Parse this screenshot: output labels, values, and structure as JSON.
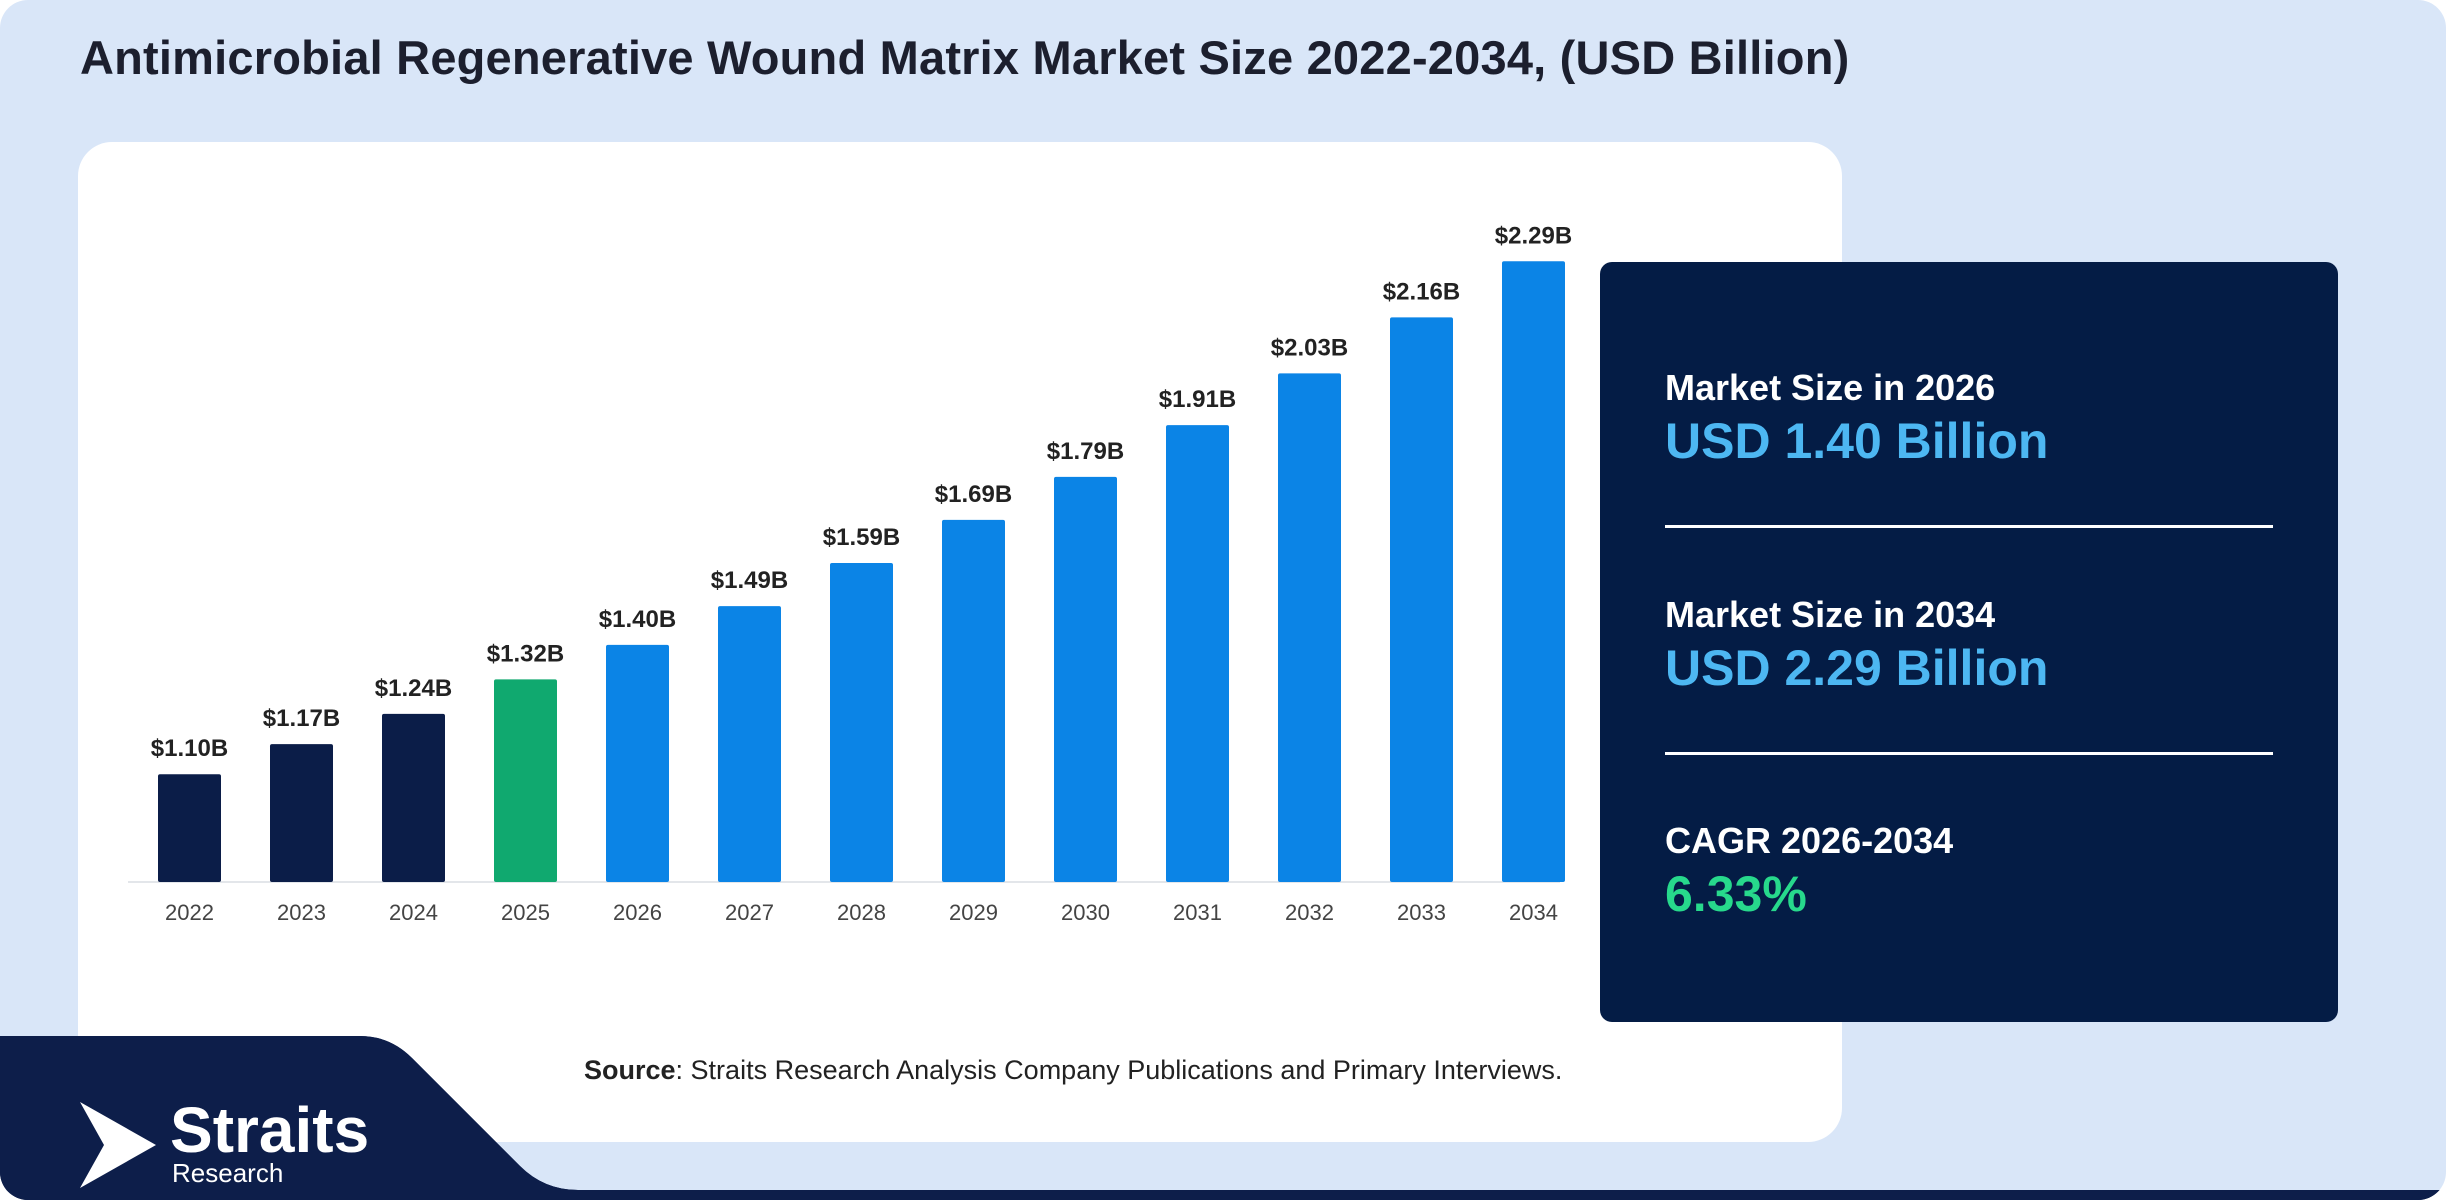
{
  "title": "Antimicrobial Regenerative Wound Matrix Market Size 2022-2034, (USD Billion)",
  "chart_data": {
    "type": "bar",
    "categories": [
      "2022",
      "2023",
      "2024",
      "2025",
      "2026",
      "2027",
      "2028",
      "2029",
      "2030",
      "2031",
      "2032",
      "2033",
      "2034"
    ],
    "values": [
      1.1,
      1.17,
      1.24,
      1.32,
      1.4,
      1.49,
      1.59,
      1.69,
      1.79,
      1.91,
      2.03,
      2.16,
      2.29
    ],
    "data_labels": [
      "$1.10B",
      "$1.17B",
      "$1.24B",
      "$1.32B",
      "$1.40B",
      "$1.49B",
      "$1.59B",
      "$1.69B",
      "$1.79B",
      "$1.91B",
      "$2.03B",
      "$2.16B",
      "$2.29B"
    ],
    "bar_colors": [
      "#0b1d48",
      "#0b1d48",
      "#0b1d48",
      "#10a96f",
      "#0b84e6",
      "#0b84e6",
      "#0b84e6",
      "#0b84e6",
      "#0b84e6",
      "#0b84e6",
      "#0b84e6",
      "#0b84e6",
      "#0b84e6"
    ],
    "ylim": [
      0.85,
      2.4
    ],
    "grid": false,
    "xlabel": "",
    "ylabel": ""
  },
  "source": {
    "label": "Source",
    "text": ": Straits Research Analysis Company Publications and Primary Interviews."
  },
  "stats": {
    "size_2026_label": "Market Size in 2026",
    "size_2026_value": "USD 1.40 Billion",
    "size_2034_label": "Market Size in 2034",
    "size_2034_value": "USD 2.29 Billion",
    "cagr_label": "CAGR 2026-2034",
    "cagr_value": "6.33%"
  },
  "logo": {
    "name": "Straits",
    "sub": "Research"
  },
  "colors": {
    "background": "#d9e6f8",
    "panel": "#041c45",
    "accent_blue": "#4db7f2",
    "accent_green": "#27d98c"
  }
}
